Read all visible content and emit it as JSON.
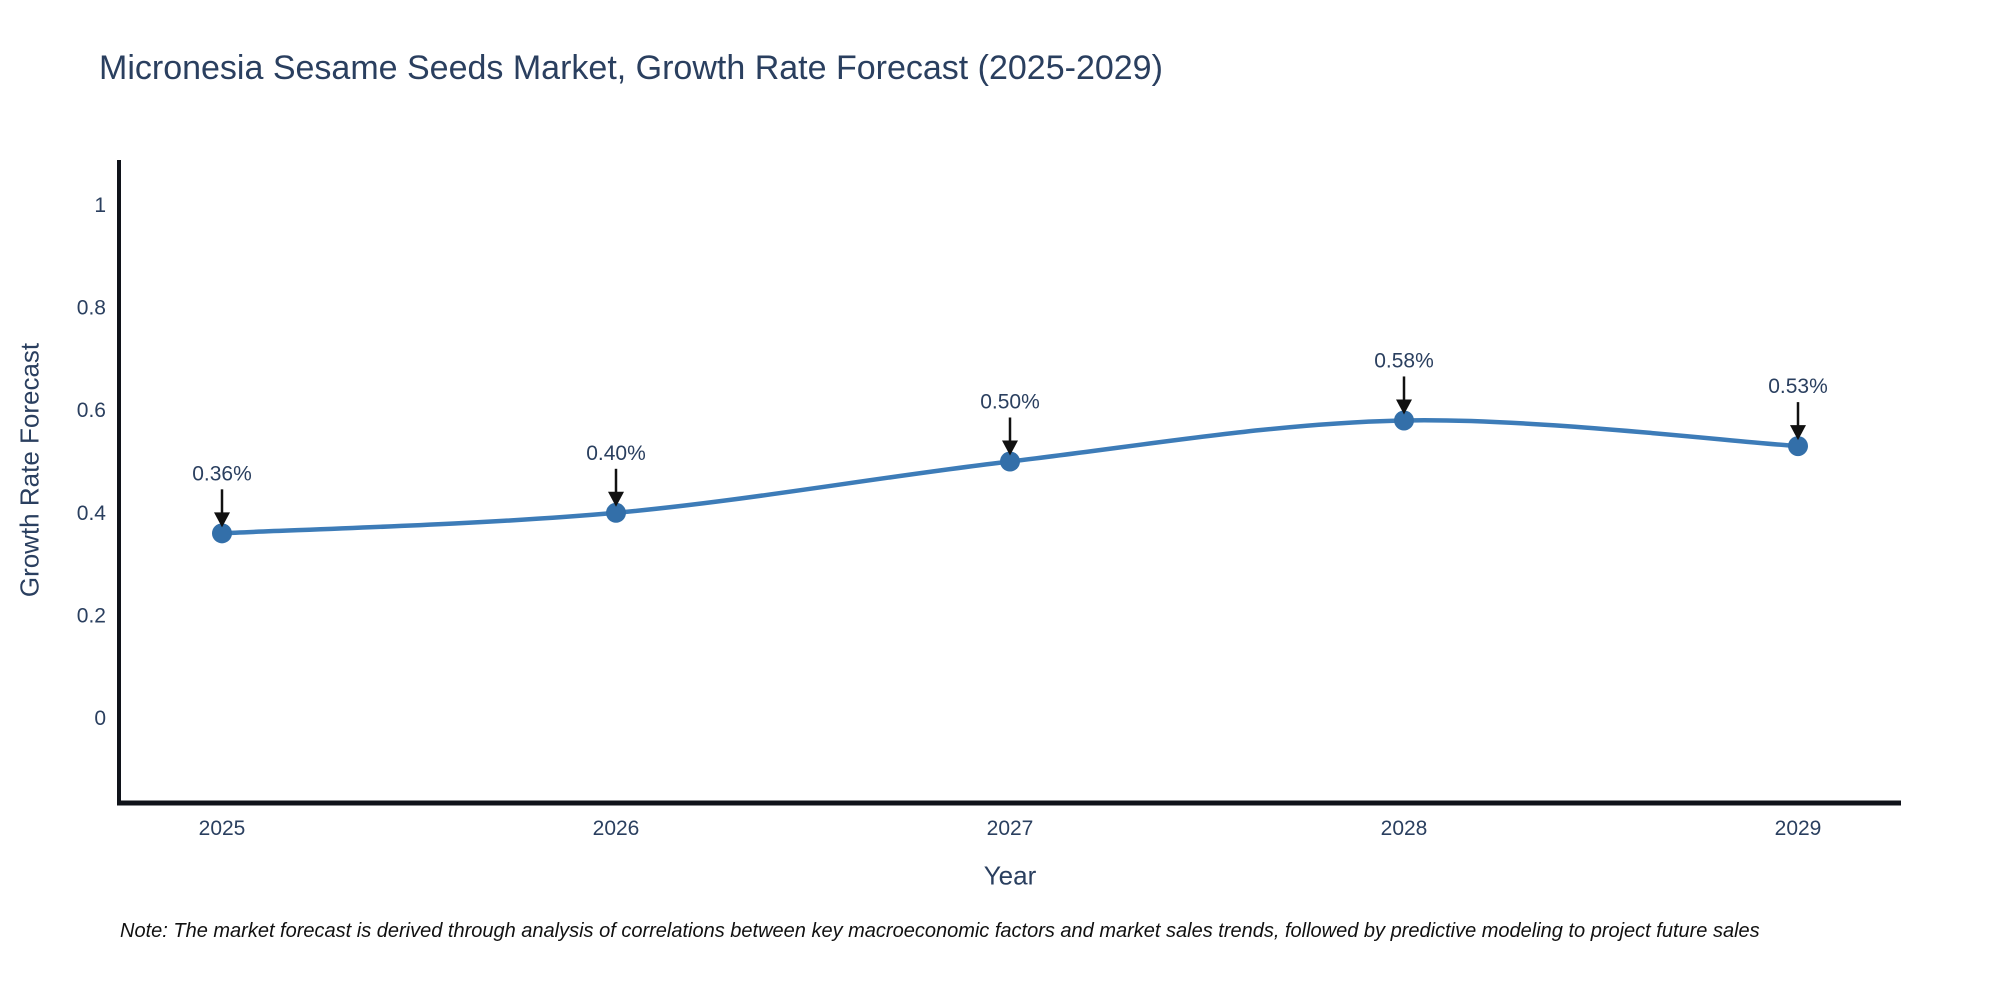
{
  "title": {
    "text": "Micronesia Sesame Seeds Market, Growth Rate Forecast (2025-2029)"
  },
  "note": {
    "text": "Note: The market forecast is derived through analysis of correlations between key macroeconomic factors and market sales trends, followed by predictive modeling to project future sales"
  },
  "colors": {
    "text": "#2a3f5f",
    "axis": "#10131a",
    "note_text": "#111111"
  },
  "chart_data": {
    "type": "line",
    "title": "Micronesia Sesame Seeds Market, Growth Rate Forecast (2025-2029)",
    "categories": [
      "2025",
      "2026",
      "2027",
      "2028",
      "2029"
    ],
    "series": [
      {
        "name": "Growth Rate Forecast",
        "values": [
          0.36,
          0.4,
          0.5,
          0.58,
          0.53
        ]
      }
    ],
    "data_labels": [
      "0.36%",
      "0.40%",
      "0.50%",
      "0.58%",
      "0.53%"
    ],
    "xlabel": "Year",
    "ylabel": "Growth Rate Forecast",
    "yticks": [
      0,
      0.2,
      0.4,
      0.6,
      0.8,
      1
    ],
    "ylim": [
      -0.16,
      1.08
    ],
    "grid": false,
    "legend_position": "none",
    "line_shape": "spline",
    "line_color": "#3d7cb8",
    "marker_color": "#336fa9",
    "annotation_text_color": "#2a3f5f",
    "annotation_arrow_color": "#111111"
  }
}
